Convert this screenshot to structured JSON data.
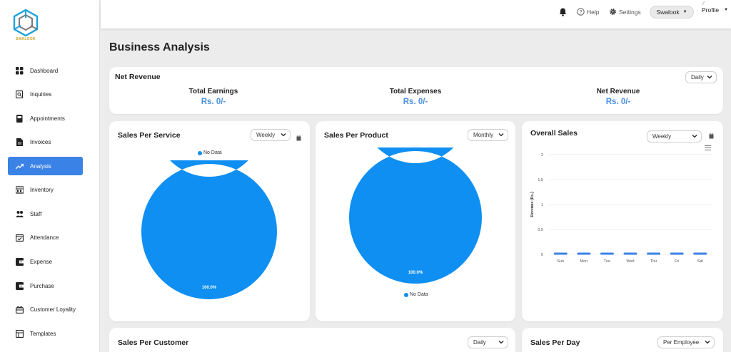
{
  "app": {
    "logo_text": "SWALOOK"
  },
  "sidebar": {
    "items": [
      {
        "label": "Dashboard",
        "icon": "dashboard-icon"
      },
      {
        "label": "Inquiries",
        "icon": "inquiries-icon"
      },
      {
        "label": "Appointments",
        "icon": "appointments-icon"
      },
      {
        "label": "Invoices",
        "icon": "invoices-icon"
      },
      {
        "label": "Analysis",
        "icon": "trending-up-icon",
        "active": true
      },
      {
        "label": "Inventory",
        "icon": "inventory-icon"
      },
      {
        "label": "Staff",
        "icon": "staff-icon"
      },
      {
        "label": "Attendance",
        "icon": "attendance-icon"
      },
      {
        "label": "Expense",
        "icon": "expense-icon"
      },
      {
        "label": "Purchase",
        "icon": "purchase-icon"
      },
      {
        "label": "Customer Loyality",
        "icon": "loyalty-icon"
      },
      {
        "label": "Templates",
        "icon": "templates-icon"
      }
    ]
  },
  "topbar": {
    "help": "Help",
    "settings": "Settings",
    "user": "Swalook",
    "profile": "Profile"
  },
  "page": {
    "title": "Business Analysis"
  },
  "net_revenue": {
    "title": "Net Revenue",
    "period": "Daily",
    "total_earnings_label": "Total Earnings",
    "total_earnings_value": "Rs. 0/-",
    "total_expenses_label": "Total Expenses",
    "total_expenses_value": "Rs. 0/-",
    "net_revenue_label": "Net Revenue",
    "net_revenue_value": "Rs. 0/-"
  },
  "sales_per_service": {
    "title": "Sales Per Service",
    "period": "Weekly",
    "legend": "No Data",
    "pct_label": "100.0%"
  },
  "sales_per_product": {
    "title": "Sales Per Product",
    "period": "Monthly",
    "legend": "No Data",
    "pct_label": "100.0%"
  },
  "overall_sales": {
    "title": "Overall Sales",
    "period": "Weekly"
  },
  "sales_per_customer": {
    "title": "Sales Per Customer",
    "period": "Daily"
  },
  "sales_per_day": {
    "title": "Sales Per Day",
    "period": "Per Employee"
  },
  "colors": {
    "accent": "#3b82e6",
    "chart_blue": "#0f8ff2",
    "value_blue": "#4a90e2"
  },
  "chart_data": [
    {
      "type": "pie",
      "title": "Sales Per Service",
      "categories": [
        "No Data"
      ],
      "values": [
        100
      ],
      "labels": [
        "100.0%"
      ],
      "legend": "top"
    },
    {
      "type": "pie",
      "title": "Sales Per Product",
      "categories": [
        "No Data"
      ],
      "values": [
        100
      ],
      "labels": [
        "100.0%"
      ],
      "legend": "bottom"
    },
    {
      "type": "bar",
      "title": "Overall Sales",
      "categories": [
        "Sun",
        "Mon",
        "Tue",
        "Wed",
        "Thu",
        "Fri",
        "Sat"
      ],
      "values": [
        0,
        0,
        0,
        0,
        0,
        0,
        0
      ],
      "ylabel": "Revenue (Rs.)",
      "ylim": [
        0,
        2
      ],
      "yticks": [
        "0",
        "0.5",
        "1",
        "1.5",
        "2"
      ],
      "grid": true
    }
  ]
}
